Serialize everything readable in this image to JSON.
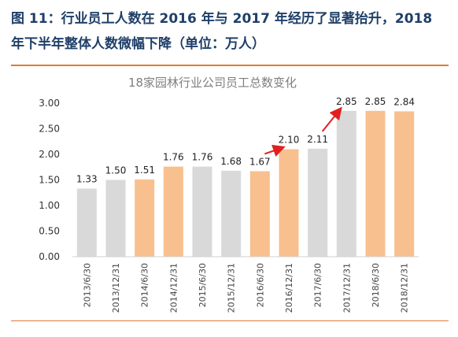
{
  "figure": {
    "title_line1": "图 11：行业员工人数在 2016 年与 2017 年经历了显著抬升，2018",
    "title_line2": "年下半年整体人数微幅下降（单位：万人）"
  },
  "colors": {
    "gray_bar": "#d9d9d9",
    "orange_bar": "#f8c08e",
    "title_color": "#1f3f68",
    "divider": "#e07b39",
    "arrow": "#e02020"
  },
  "chart_data": {
    "type": "bar",
    "title": "18家园林行业公司员工总数变化",
    "categories": [
      "2013/6/30",
      "2013/12/31",
      "2014/6/30",
      "2014/12/31",
      "2015/6/30",
      "2015/12/31",
      "2016/6/30",
      "2016/12/31",
      "2017/6/30",
      "2017/12/31",
      "2018/6/30",
      "2018/12/31"
    ],
    "values": [
      1.33,
      1.5,
      1.51,
      1.76,
      1.76,
      1.68,
      1.67,
      2.1,
      2.11,
      2.85,
      2.85,
      2.84
    ],
    "value_labels": [
      "1.33",
      "1.50",
      "1.51",
      "1.76",
      "1.76",
      "1.68",
      "1.67",
      "2.10",
      "2.11",
      "2.85",
      "2.85",
      "2.84"
    ],
    "bar_colors": [
      "gray",
      "gray",
      "orange",
      "orange",
      "gray",
      "gray",
      "orange",
      "orange",
      "gray",
      "gray",
      "orange",
      "orange"
    ],
    "ylim": [
      0,
      3
    ],
    "yticks": [
      "0.00",
      "0.50",
      "1.00",
      "1.50",
      "2.00",
      "2.50",
      "3.00"
    ],
    "ytick_values": [
      0,
      0.5,
      1.0,
      1.5,
      2.0,
      2.5,
      3.0
    ],
    "annotations": [
      {
        "type": "arrow",
        "from_category": "2016/6/30",
        "to_category": "2016/12/31"
      },
      {
        "type": "arrow",
        "from_category": "2017/6/30",
        "to_category": "2017/12/31"
      }
    ],
    "grid": false,
    "legend": "none"
  }
}
